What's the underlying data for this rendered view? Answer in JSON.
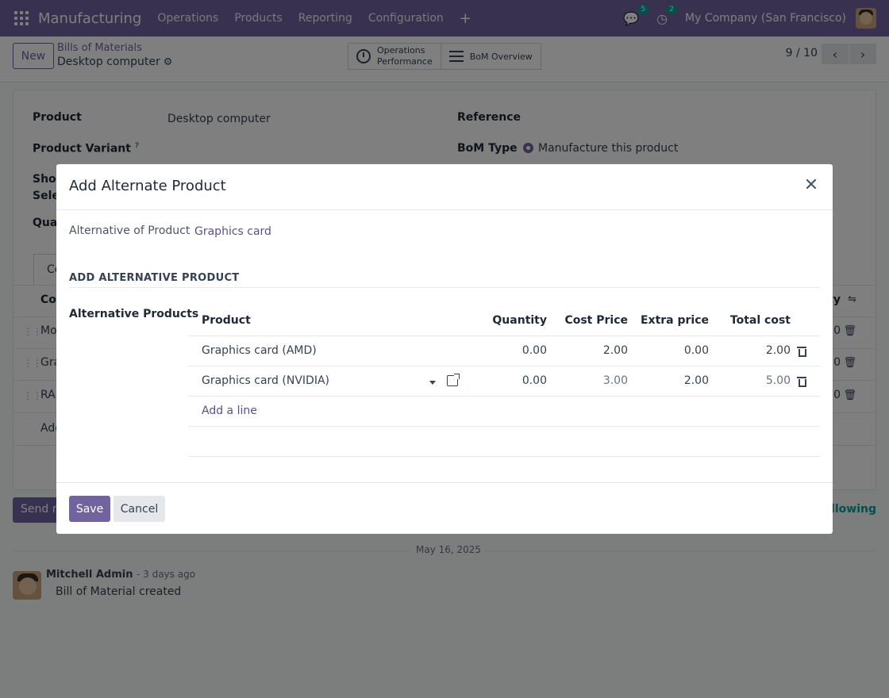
{
  "navbar": {
    "app_name": "Manufacturing",
    "menu": [
      "Operations",
      "Products",
      "Reporting",
      "Configuration"
    ],
    "messages_count": "5",
    "activities_count": "2",
    "company": "My Company (San Francisco)"
  },
  "control": {
    "new_label": "New",
    "breadcrumb_parent": "Bills of Materials",
    "breadcrumb_current": "Desktop computer",
    "smart_operations_1": "Operations",
    "smart_operations_2": "Performance",
    "smart_bom_overview": "BoM Overview",
    "pager": "9 / 10"
  },
  "form": {
    "product_label": "Product",
    "product_value": "Desktop computer",
    "variant_label": "Product Variant",
    "variant_tooltip": "?",
    "reference_label": "Reference",
    "bom_type_label": "BoM Type",
    "bom_type_value": "Manufacture this product",
    "show_label": "Show",
    "select_label": "Selec",
    "quantity_label": "Quan",
    "tab_label": "Co",
    "col_comp": "Com",
    "col_qty": "ty",
    "rows": [
      {
        "text": "Mo",
        "val": "0"
      },
      {
        "text": "Gra",
        "val": "0"
      },
      {
        "text": "RA",
        "val": "0"
      }
    ],
    "add_partial": "Add"
  },
  "chatter": {
    "send_message": "Send m",
    "following": "ollowing",
    "date": "May 16, 2025",
    "author": "Mitchell Admin",
    "time": "- 3 days ago",
    "body": "Bill of Material created"
  },
  "modal": {
    "title": "Add Alternate Product",
    "alt_of_label": "Alternative of Product",
    "alt_of_value": "Graphics card",
    "section_title": "ADD ALTERNATIVE PRODUCT",
    "alt_products_label": "Alternative Products",
    "columns": [
      "Product",
      "Quantity",
      "Cost Price",
      "Extra price",
      "Total cost"
    ],
    "lines": [
      {
        "product": "Graphics card (AMD)",
        "quantity": "0.00",
        "cost_price": "2.00",
        "extra_price": "0.00",
        "total_cost": "2.00"
      },
      {
        "product": "Graphics card (NVIDIA)",
        "quantity": "0.00",
        "cost_price": "3.00",
        "extra_price": "2.00",
        "total_cost": "5.00"
      }
    ],
    "add_line": "Add a line",
    "save_label": "Save",
    "cancel_label": "Cancel"
  }
}
